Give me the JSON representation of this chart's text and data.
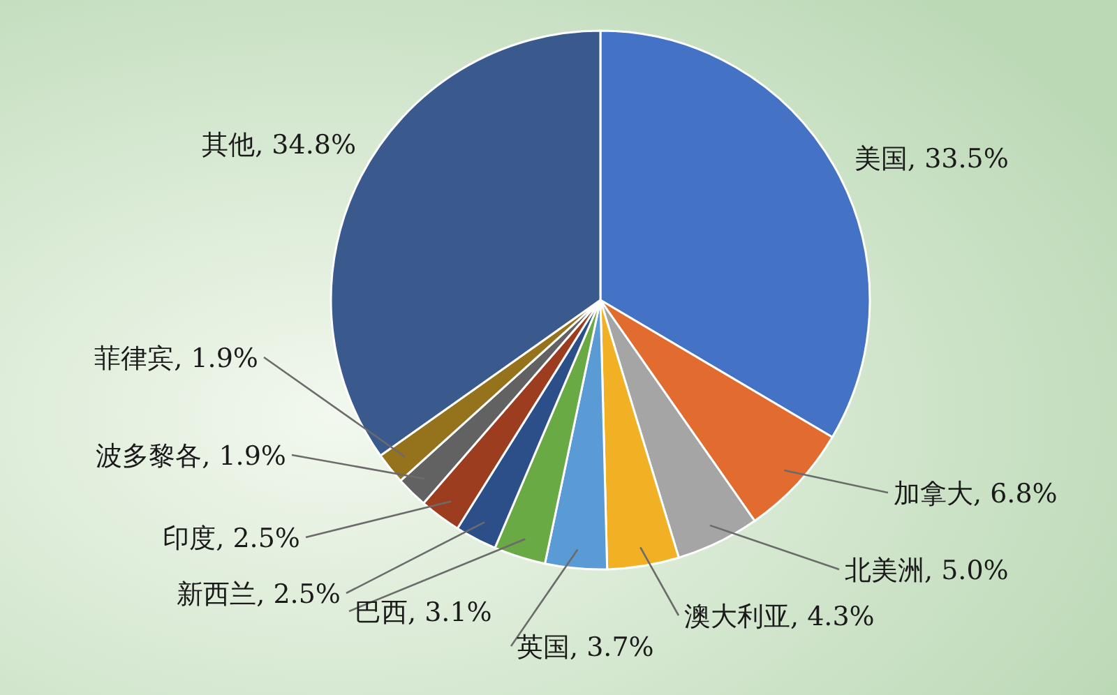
{
  "chart_data": {
    "type": "pie",
    "categories": [
      "美国",
      "加拿大",
      "北美洲",
      "澳大利亚",
      "英国",
      "巴西",
      "新西兰",
      "印度",
      "波多黎各",
      "菲律宾",
      "其他"
    ],
    "values": [
      33.5,
      6.8,
      5.0,
      4.3,
      3.7,
      3.1,
      2.5,
      2.5,
      1.9,
      1.9,
      34.8
    ],
    "value_labels": [
      "33.5%",
      "6.8%",
      "5.0%",
      "4.3%",
      "3.7%",
      "3.1%",
      "2.5%",
      "2.5%",
      "1.9%",
      "1.9%",
      "34.8%"
    ],
    "colors": [
      "#4472c4",
      "#e26b30",
      "#a5a5a5",
      "#f2b124",
      "#5b9bd5",
      "#6aaa45",
      "#2c4f8a",
      "#9c3d1f",
      "#626262",
      "#95731c",
      "#3a5a8e"
    ]
  }
}
